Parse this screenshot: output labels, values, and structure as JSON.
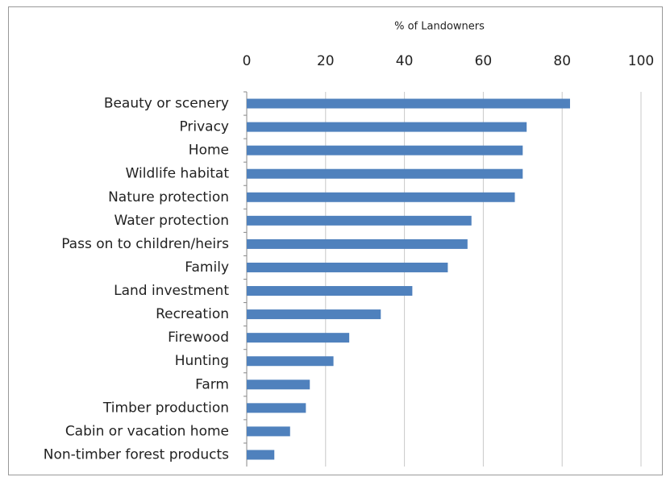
{
  "chart_data": {
    "type": "bar",
    "orientation": "horizontal",
    "x_label": "% of Landowners",
    "categories": [
      "Beauty or scenery",
      "Privacy",
      "Home",
      "Wildlife habitat",
      "Nature protection",
      "Water protection",
      "Pass on to children/heirs",
      "Family",
      "Land investment",
      "Recreation",
      "Firewood",
      "Hunting",
      "Farm",
      "Timber production",
      "Cabin or vacation home",
      "Non-timber forest products"
    ],
    "values": [
      82,
      71,
      70,
      70,
      68,
      57,
      56,
      51,
      42,
      34,
      26,
      22,
      16,
      15,
      11,
      7
    ],
    "color": "#4f81bd",
    "xlim": [
      0,
      100
    ],
    "xticks": [
      0,
      20,
      40,
      60,
      80,
      100
    ],
    "grid": true
  }
}
